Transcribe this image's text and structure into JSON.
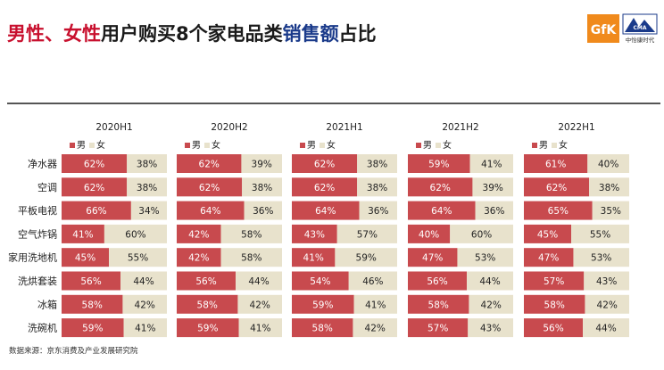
{
  "title": {
    "part1": "男性、女性",
    "part2": "用户购买8个家电品类",
    "part3": "销售额",
    "part4": "占比"
  },
  "logos": {
    "gfk": "GfK",
    "cma": "CMA",
    "cma_sub": "中怡康时代"
  },
  "source": "数据来源：京东消费及产业发展研究院",
  "colors": {
    "male": "#c84a4e",
    "female": "#e8e2cc"
  },
  "chart_data": {
    "type": "bar",
    "subtype": "stacked-horizontal-100",
    "categories": [
      "净水器",
      "空调",
      "平板电视",
      "空气炸锅",
      "家用洗地机",
      "洗烘套装",
      "冰箱",
      "洗碗机"
    ],
    "legend": [
      "男",
      "女"
    ],
    "panels": [
      {
        "title": "2020H1",
        "series": [
          {
            "name": "男",
            "values": [
              "62%",
              "62%",
              "66%",
              "41%",
              "45%",
              "56%",
              "58%",
              "59%"
            ]
          },
          {
            "name": "女",
            "values": [
              "38%",
              "38%",
              "34%",
              "60%",
              "55%",
              "44%",
              "42%",
              "41%"
            ]
          }
        ]
      },
      {
        "title": "2020H2",
        "series": [
          {
            "name": "男",
            "values": [
              "62%",
              "62%",
              "64%",
              "42%",
              "42%",
              "56%",
              "58%",
              "59%"
            ]
          },
          {
            "name": "女",
            "values": [
              "39%",
              "38%",
              "36%",
              "58%",
              "58%",
              "44%",
              "42%",
              "41%"
            ]
          }
        ]
      },
      {
        "title": "2021H1",
        "series": [
          {
            "name": "男",
            "values": [
              "62%",
              "62%",
              "64%",
              "43%",
              "41%",
              "54%",
              "59%",
              "58%"
            ]
          },
          {
            "name": "女",
            "values": [
              "38%",
              "38%",
              "36%",
              "57%",
              "59%",
              "46%",
              "41%",
              "42%"
            ]
          }
        ]
      },
      {
        "title": "2021H2",
        "series": [
          {
            "name": "男",
            "values": [
              "59%",
              "62%",
              "64%",
              "40%",
              "47%",
              "56%",
              "58%",
              "57%"
            ]
          },
          {
            "name": "女",
            "values": [
              "41%",
              "39%",
              "36%",
              "60%",
              "53%",
              "44%",
              "42%",
              "43%"
            ]
          }
        ]
      },
      {
        "title": "2022H1",
        "series": [
          {
            "name": "男",
            "values": [
              "61%",
              "62%",
              "65%",
              "45%",
              "47%",
              "57%",
              "58%",
              "56%"
            ]
          },
          {
            "name": "女",
            "values": [
              "40%",
              "38%",
              "35%",
              "55%",
              "53%",
              "43%",
              "42%",
              "44%"
            ]
          }
        ]
      }
    ]
  }
}
